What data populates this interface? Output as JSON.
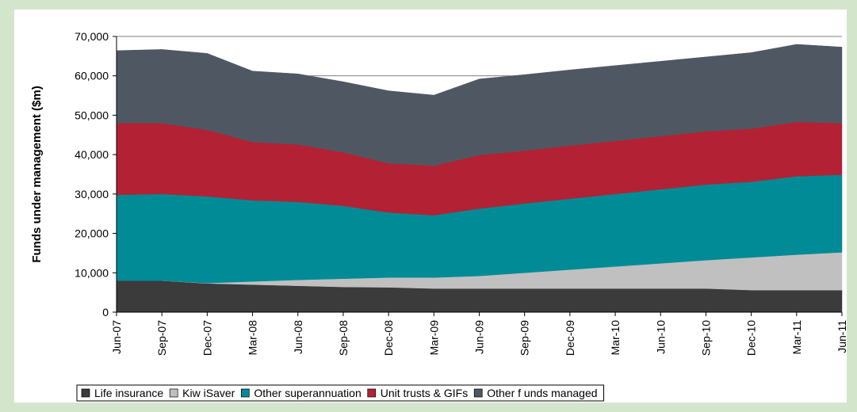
{
  "chart_data": {
    "type": "stacked_area",
    "y_label": "Funds under management ($m)",
    "categories": [
      "Jun-07",
      "Sep-07",
      "Dec-07",
      "Mar-08",
      "Jun-08",
      "Sep-08",
      "Dec-08",
      "Mar-09",
      "Jun-09",
      "Sep-09",
      "Dec-09",
      "Mar-10",
      "Jun-10",
      "Sep-10",
      "Dec-10",
      "Mar-11",
      "Jun-11"
    ],
    "series": [
      {
        "name": "Life insurance",
        "color": "#3b3b3b",
        "values": [
          8000,
          8000,
          7300,
          7000,
          6700,
          6400,
          6300,
          6000,
          6000,
          6000,
          6000,
          6000,
          6000,
          6000,
          5600,
          5600,
          5600
        ]
      },
      {
        "name": "Kiw iSaver",
        "color": "#c0c0c0",
        "values": [
          0,
          0,
          100,
          800,
          1500,
          2100,
          2500,
          2800,
          3200,
          4000,
          4800,
          5600,
          6400,
          7200,
          8300,
          9000,
          9600
        ]
      },
      {
        "name": "Other superannuation",
        "color": "#008b96",
        "values": [
          21800,
          22000,
          22000,
          20600,
          19800,
          18500,
          16500,
          15800,
          17100,
          17600,
          18000,
          18400,
          18800,
          19200,
          19200,
          19900,
          19700
        ]
      },
      {
        "name": "Unit trusts & GIFs",
        "color": "#b22234",
        "values": [
          18200,
          18000,
          16900,
          14800,
          14600,
          13600,
          12500,
          12600,
          13600,
          13400,
          13500,
          13500,
          13500,
          13500,
          13500,
          13800,
          13100
        ]
      },
      {
        "name": "Other f unds managed",
        "color": "#4f5862",
        "values": [
          18400,
          18700,
          19400,
          18000,
          17900,
          17900,
          18400,
          17900,
          19300,
          19300,
          19200,
          19100,
          19000,
          18900,
          19300,
          19700,
          19300
        ]
      }
    ],
    "ylim": [
      0,
      70000
    ],
    "yticks": [
      0,
      {
        "value": 10000,
        "label": "10,000"
      },
      {
        "value": 20000,
        "label": "20,000"
      },
      {
        "value": 30000,
        "label": "30,000"
      },
      {
        "value": 40000,
        "label": "40,000"
      },
      {
        "value": 50000,
        "label": "50,000"
      },
      {
        "value": 60000,
        "label": "60,000"
      },
      {
        "value": 70000,
        "label": "70,000"
      }
    ],
    "grid": true,
    "legend": "bottom"
  }
}
